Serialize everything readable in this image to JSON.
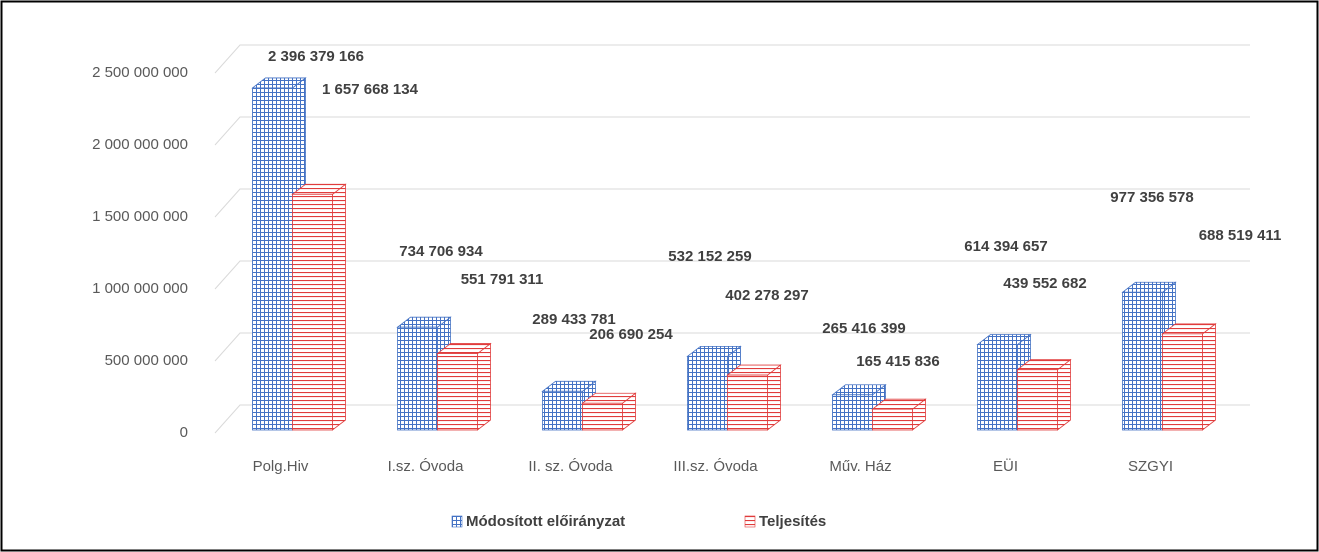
{
  "chart_data": {
    "type": "bar",
    "categories": [
      "Polg.Hiv",
      "I.sz. Óvoda",
      "II. sz. Óvoda",
      "III.sz. Óvoda",
      "Műv. Ház",
      "EÜI",
      "SZGYI"
    ],
    "series": [
      {
        "name": "Módosított előirányzat",
        "color": "#4472c4",
        "values": [
          2396379166,
          734706934,
          289433781,
          532152259,
          265416399,
          614394657,
          977356578
        ],
        "value_labels": [
          "2 396 379 166",
          "734 706 934",
          "289 433 781",
          "532 152 259",
          "265 416 399",
          "614 394 657",
          "977 356 578"
        ]
      },
      {
        "name": "Teljesítés",
        "color": "#e03c3c",
        "values": [
          1657668134,
          551791311,
          206690254,
          402278297,
          165415836,
          439552682,
          688519411
        ],
        "value_labels": [
          "1 657 668 134",
          "551 791 311",
          "206 690 254",
          "402 278 297",
          "165 415 836",
          "439 552 682",
          "688 519 411"
        ]
      }
    ],
    "ylim": [
      0,
      2500000000
    ],
    "yticks": [
      0,
      {
        "value": 500000000,
        "label": "500 000 000"
      },
      {
        "value": 1000000000,
        "label": "1 000 000 000"
      },
      {
        "value": 1500000000,
        "label": "1 500 000 000"
      },
      {
        "value": 2000000000,
        "label": "2 000 000 000"
      },
      {
        "value": 2500000000,
        "label": "2 500 000 000"
      }
    ],
    "grid": true,
    "legend": "bottom"
  }
}
